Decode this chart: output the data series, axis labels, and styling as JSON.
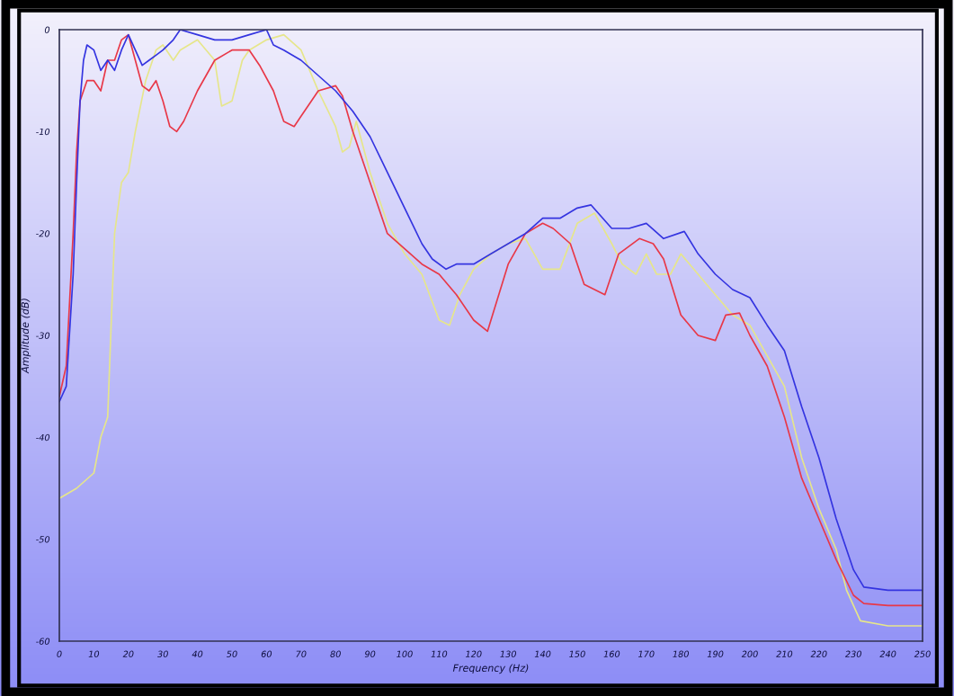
{
  "chart_data": {
    "type": "line",
    "xlabel": "Frequency (Hz)",
    "ylabel": "Amplitude (dB)",
    "xlim": [
      0,
      250
    ],
    "ylim": [
      -60,
      0
    ],
    "xticks": [
      0,
      10,
      20,
      30,
      40,
      50,
      60,
      70,
      80,
      90,
      100,
      110,
      120,
      130,
      140,
      150,
      160,
      170,
      180,
      190,
      200,
      210,
      220,
      230,
      240,
      250
    ],
    "yticks": [
      -60,
      -50,
      -40,
      -30,
      -20,
      -10,
      0
    ],
    "grid": false,
    "marker": "none",
    "line_style": "solid",
    "series": [
      {
        "color": "#e6e68a",
        "x": [
          0,
          5,
          10,
          12,
          14,
          16,
          18,
          20,
          22,
          25,
          28,
          30,
          33,
          35,
          40,
          45,
          47,
          50,
          53,
          55,
          60,
          65,
          70,
          75,
          80,
          82,
          84,
          86,
          90,
          95,
          100,
          105,
          110,
          113,
          116,
          120,
          125,
          130,
          135,
          140,
          145,
          150,
          155,
          160,
          163,
          167,
          170,
          173,
          177,
          180,
          185,
          190,
          195,
          200,
          205,
          210,
          215,
          220,
          225,
          228,
          232,
          240,
          250
        ],
        "values": [
          -46,
          -45,
          -43.5,
          -40,
          -38,
          -20,
          -15,
          -14,
          -10,
          -5,
          -2,
          -1.5,
          -3,
          -2,
          -1,
          -3,
          -7.5,
          -7,
          -3,
          -2,
          -1,
          -0.5,
          -2,
          -6,
          -9.5,
          -12,
          -11.5,
          -9,
          -14,
          -19,
          -22,
          -24,
          -28.5,
          -29,
          -26,
          -23.5,
          -22,
          -21,
          -20.5,
          -23.5,
          -23.5,
          -19,
          -18,
          -21,
          -23,
          -24,
          -22,
          -24,
          -24,
          -22,
          -24,
          -26,
          -28,
          -29,
          -32,
          -35,
          -42,
          -47,
          -51,
          -55,
          -58,
          -58.5,
          -58.5
        ]
      },
      {
        "color": "#e83848",
        "x": [
          0,
          2,
          4,
          5,
          6,
          8,
          10,
          12,
          14,
          16,
          18,
          20,
          22,
          24,
          26,
          28,
          30,
          32,
          34,
          36,
          40,
          45,
          50,
          55,
          58,
          62,
          65,
          68,
          70,
          75,
          80,
          82,
          85,
          90,
          95,
          100,
          105,
          110,
          115,
          120,
          124,
          130,
          135,
          140,
          143,
          148,
          152,
          158,
          162,
          168,
          172,
          175,
          180,
          185,
          190,
          193,
          197,
          200,
          205,
          210,
          215,
          220,
          225,
          230,
          233,
          240,
          250
        ],
        "values": [
          -36,
          -33,
          -20,
          -12,
          -7,
          -5,
          -5,
          -6,
          -3,
          -3,
          -1,
          -0.5,
          -3,
          -5.5,
          -6,
          -5,
          -7,
          -9.5,
          -10,
          -9,
          -6,
          -3,
          -2,
          -2,
          -3.5,
          -6,
          -9,
          -9.5,
          -8.5,
          -6,
          -5.5,
          -6.5,
          -10,
          -15,
          -20,
          -21.5,
          -23,
          -24,
          -26,
          -28.5,
          -29.6,
          -23,
          -20,
          -19,
          -19.5,
          -21,
          -25,
          -26,
          -22,
          -20.5,
          -21,
          -22.5,
          -28,
          -30,
          -30.5,
          -28,
          -27.8,
          -30,
          -33,
          -38,
          -44,
          -48,
          -52,
          -55.5,
          -56.3,
          -56.5,
          -56.5
        ]
      },
      {
        "color": "#3434e0",
        "x": [
          0,
          2,
          4,
          5,
          6,
          7,
          8,
          10,
          12,
          14,
          16,
          18,
          20,
          22,
          24,
          26,
          28,
          30,
          33,
          35,
          40,
          45,
          50,
          55,
          60,
          62,
          65,
          70,
          75,
          80,
          85,
          90,
          95,
          100,
          105,
          108,
          112,
          115,
          120,
          125,
          130,
          135,
          140,
          145,
          150,
          154,
          160,
          165,
          170,
          175,
          181,
          185,
          190,
          195,
          200,
          205,
          210,
          215,
          220,
          225,
          230,
          233,
          240,
          250
        ],
        "values": [
          -36.5,
          -35,
          -24,
          -15,
          -7,
          -3,
          -1.5,
          -2,
          -4,
          -3,
          -4,
          -2,
          -0.5,
          -2,
          -3.5,
          -3,
          -2.5,
          -2,
          -1,
          0,
          -0.5,
          -1,
          -1,
          -0.5,
          0,
          -1.5,
          -2,
          -3,
          -4.5,
          -6,
          -8,
          -10.5,
          -14,
          -17.5,
          -21,
          -22.5,
          -23.5,
          -23,
          -23,
          -22,
          -21,
          -20,
          -18.5,
          -18.5,
          -17.5,
          -17.2,
          -19.5,
          -19.5,
          -19,
          -20.5,
          -19.8,
          -22,
          -24,
          -25.5,
          -26.3,
          -29,
          -31.5,
          -37,
          -42,
          -48,
          -53,
          -54.7,
          -55,
          -55
        ]
      }
    ]
  }
}
